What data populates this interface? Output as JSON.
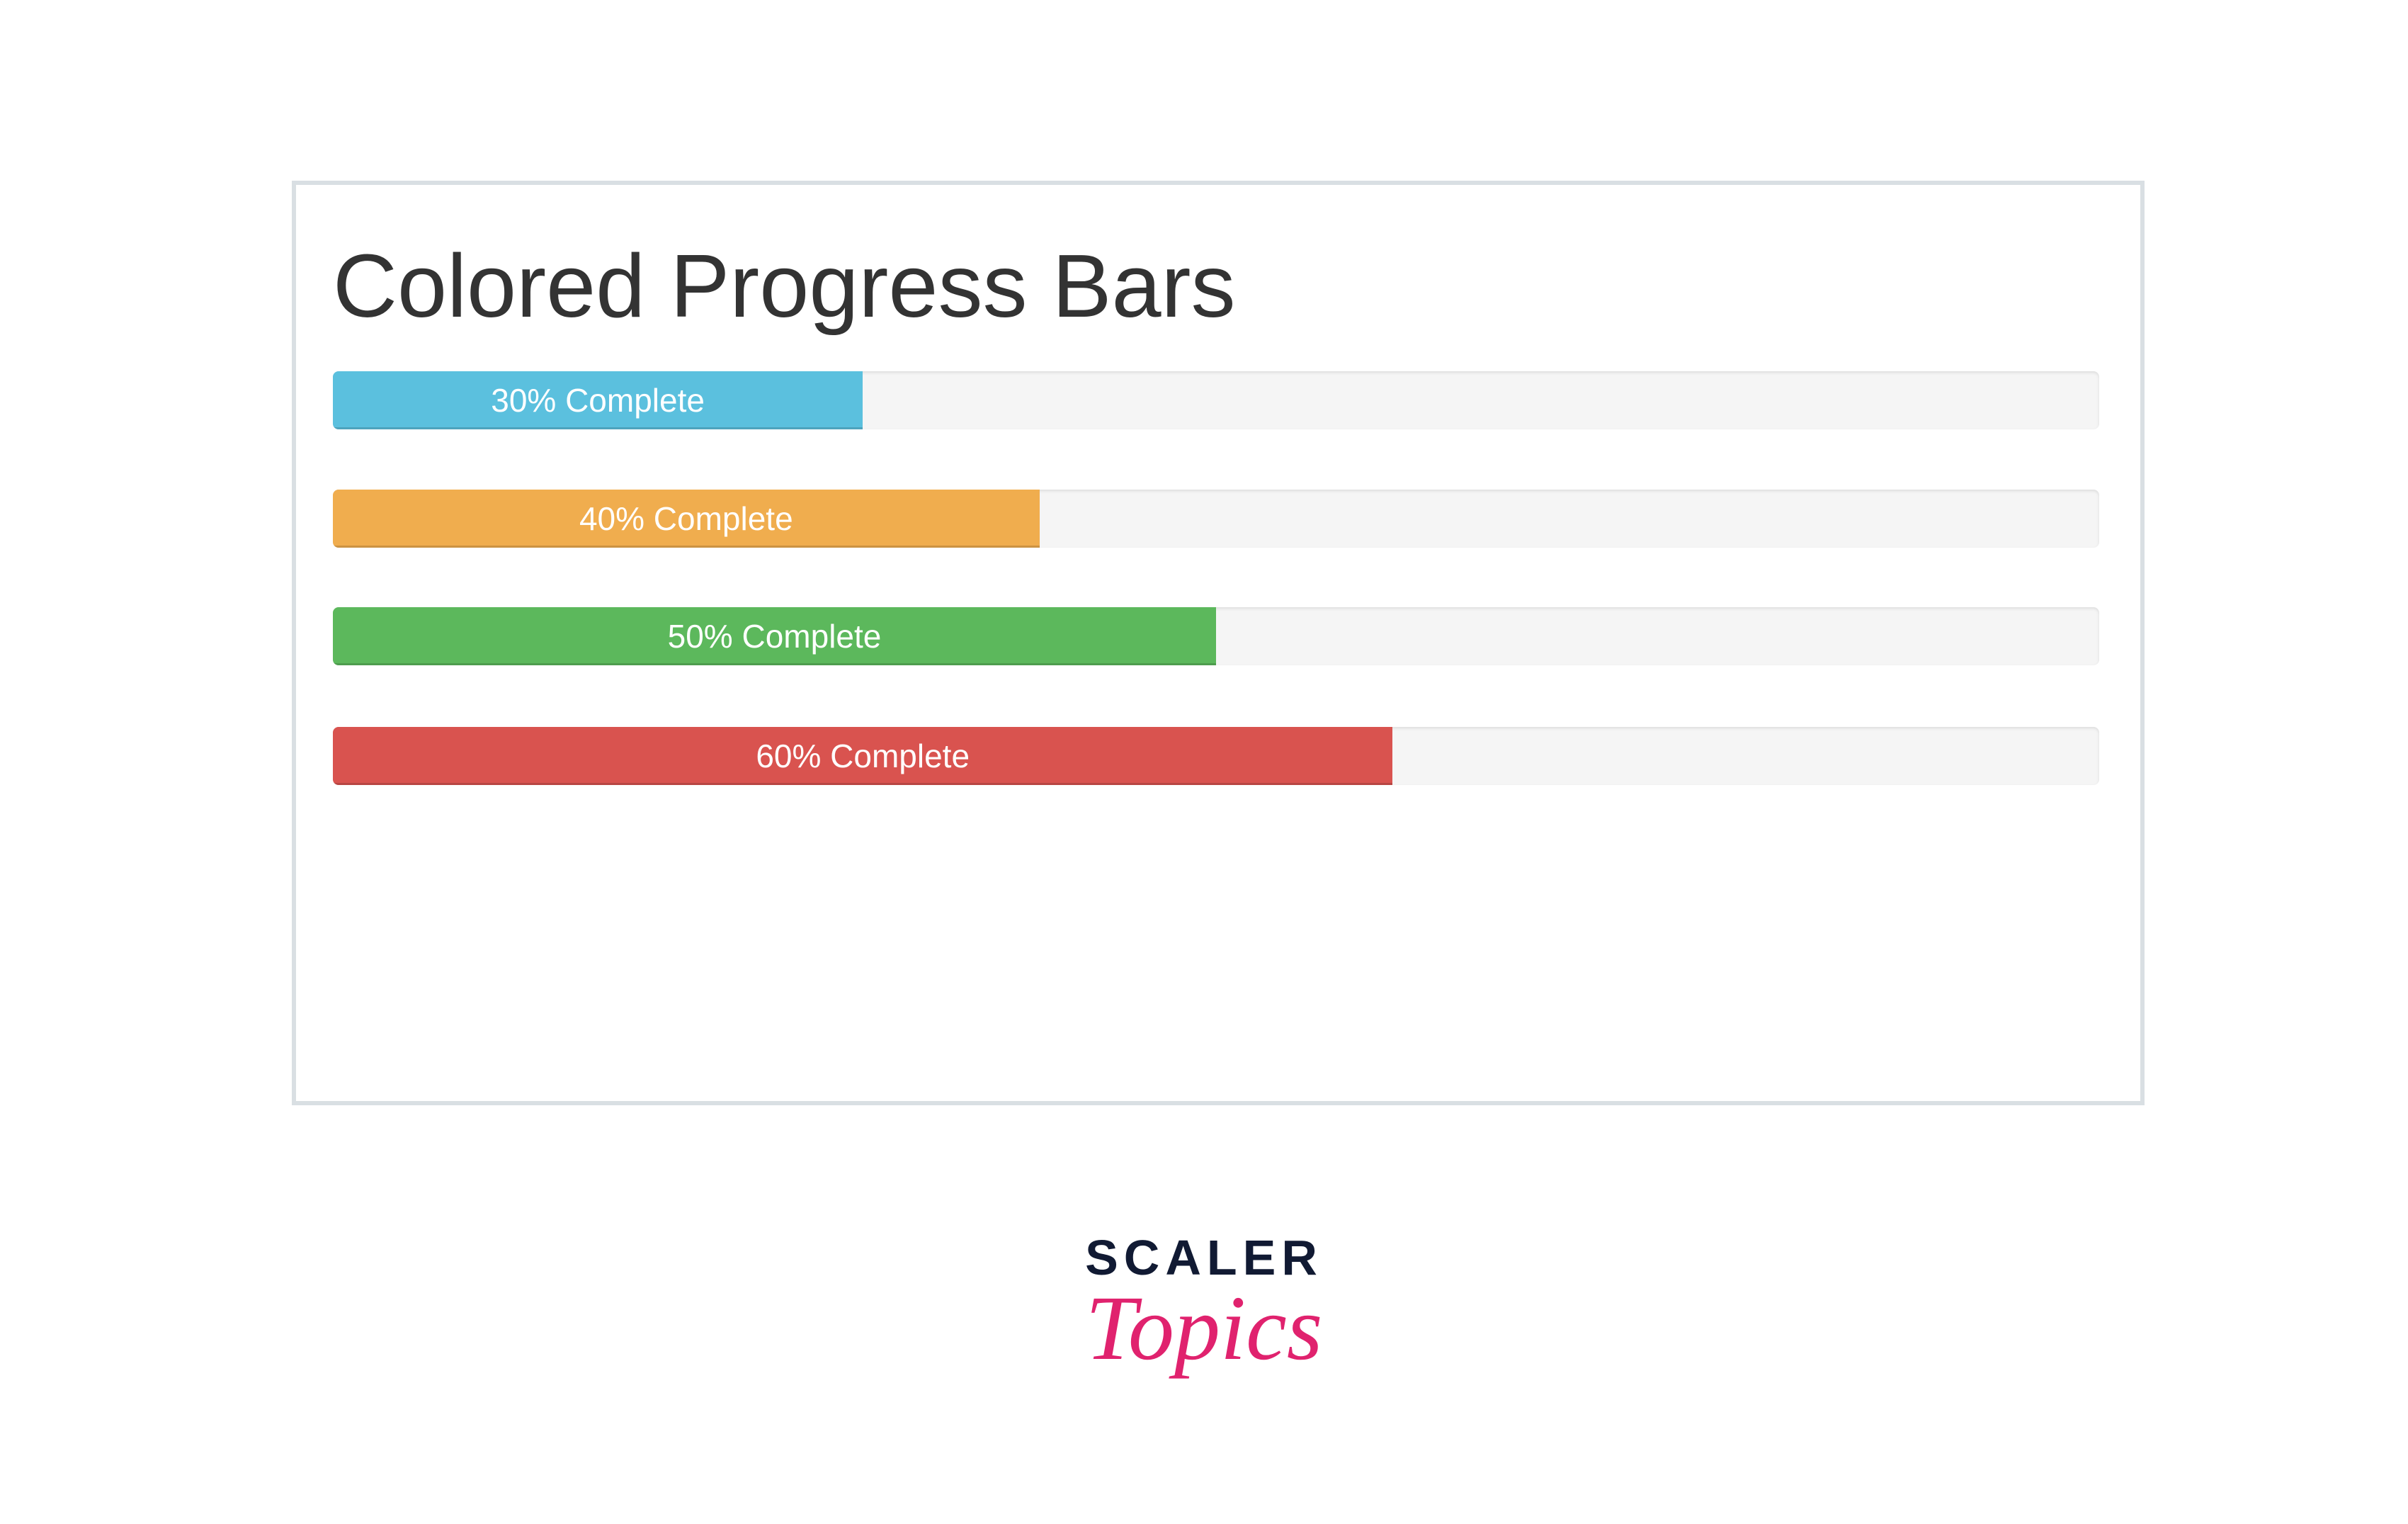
{
  "header": {
    "title": "Colored Progress Bars"
  },
  "progress_bars": [
    {
      "label": "30% Complete",
      "value": 30,
      "color": "#5bc0de"
    },
    {
      "label": "40% Complete",
      "value": 40,
      "color": "#f0ad4e"
    },
    {
      "label": "50% Complete",
      "value": 50,
      "color": "#5cb85c"
    },
    {
      "label": "60% Complete",
      "value": 60,
      "color": "#d9534f"
    }
  ],
  "logo": {
    "name": "SCALER",
    "tagline": "Topics"
  }
}
